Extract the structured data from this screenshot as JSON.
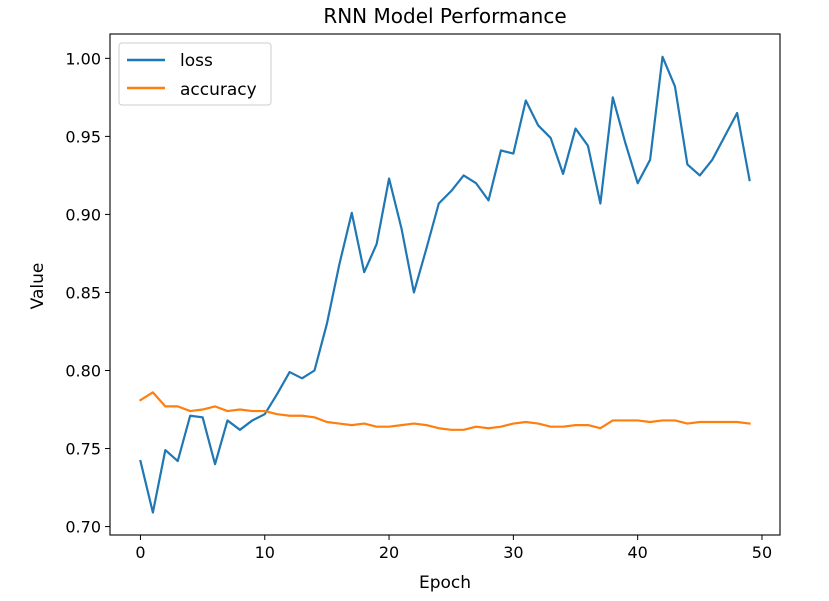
{
  "chart_data": {
    "type": "line",
    "title": "RNN Model Performance",
    "xlabel": "Epoch",
    "ylabel": "Value",
    "xlim": [
      -2.45,
      51.45
    ],
    "ylim": [
      0.6946,
      1.0156
    ],
    "xticks": [
      0,
      10,
      20,
      30,
      40,
      50
    ],
    "yticks": [
      0.7,
      0.75,
      0.8,
      0.85,
      0.9,
      0.95,
      1.0
    ],
    "xtick_labels": [
      "0",
      "10",
      "20",
      "30",
      "40",
      "50"
    ],
    "ytick_labels": [
      "0.70",
      "0.75",
      "0.80",
      "0.85",
      "0.90",
      "0.95",
      "1.00"
    ],
    "grid": false,
    "legend_position": "top-left",
    "x": [
      0,
      1,
      2,
      3,
      4,
      5,
      6,
      7,
      8,
      9,
      10,
      11,
      12,
      13,
      14,
      15,
      16,
      17,
      18,
      19,
      20,
      21,
      22,
      23,
      24,
      25,
      26,
      27,
      28,
      29,
      30,
      31,
      32,
      33,
      34,
      35,
      36,
      37,
      38,
      39,
      40,
      41,
      42,
      43,
      44,
      45,
      46,
      47,
      48,
      49
    ],
    "series": [
      {
        "name": "loss",
        "color": "#1f77b4",
        "values": [
          0.742,
          0.709,
          0.749,
          0.742,
          0.771,
          0.77,
          0.74,
          0.768,
          0.762,
          0.768,
          0.772,
          0.785,
          0.799,
          0.795,
          0.8,
          0.83,
          0.868,
          0.901,
          0.863,
          0.881,
          0.923,
          0.891,
          0.85,
          0.878,
          0.907,
          0.915,
          0.925,
          0.92,
          0.909,
          0.941,
          0.939,
          0.973,
          0.957,
          0.949,
          0.926,
          0.955,
          0.944,
          0.907,
          0.975,
          0.946,
          0.92,
          0.935,
          1.001,
          0.982,
          0.932,
          0.925,
          0.935,
          0.95,
          0.965,
          0.922
        ]
      },
      {
        "name": "accuracy",
        "color": "#ff7f0e",
        "values": [
          0.781,
          0.786,
          0.777,
          0.777,
          0.774,
          0.775,
          0.777,
          0.774,
          0.775,
          0.774,
          0.774,
          0.772,
          0.771,
          0.771,
          0.77,
          0.767,
          0.766,
          0.765,
          0.766,
          0.764,
          0.764,
          0.765,
          0.766,
          0.765,
          0.763,
          0.762,
          0.762,
          0.764,
          0.763,
          0.764,
          0.766,
          0.767,
          0.766,
          0.764,
          0.764,
          0.765,
          0.765,
          0.763,
          0.768,
          0.768,
          0.768,
          0.767,
          0.768,
          0.768,
          0.766,
          0.767,
          0.767,
          0.767,
          0.767,
          0.766
        ]
      }
    ]
  }
}
